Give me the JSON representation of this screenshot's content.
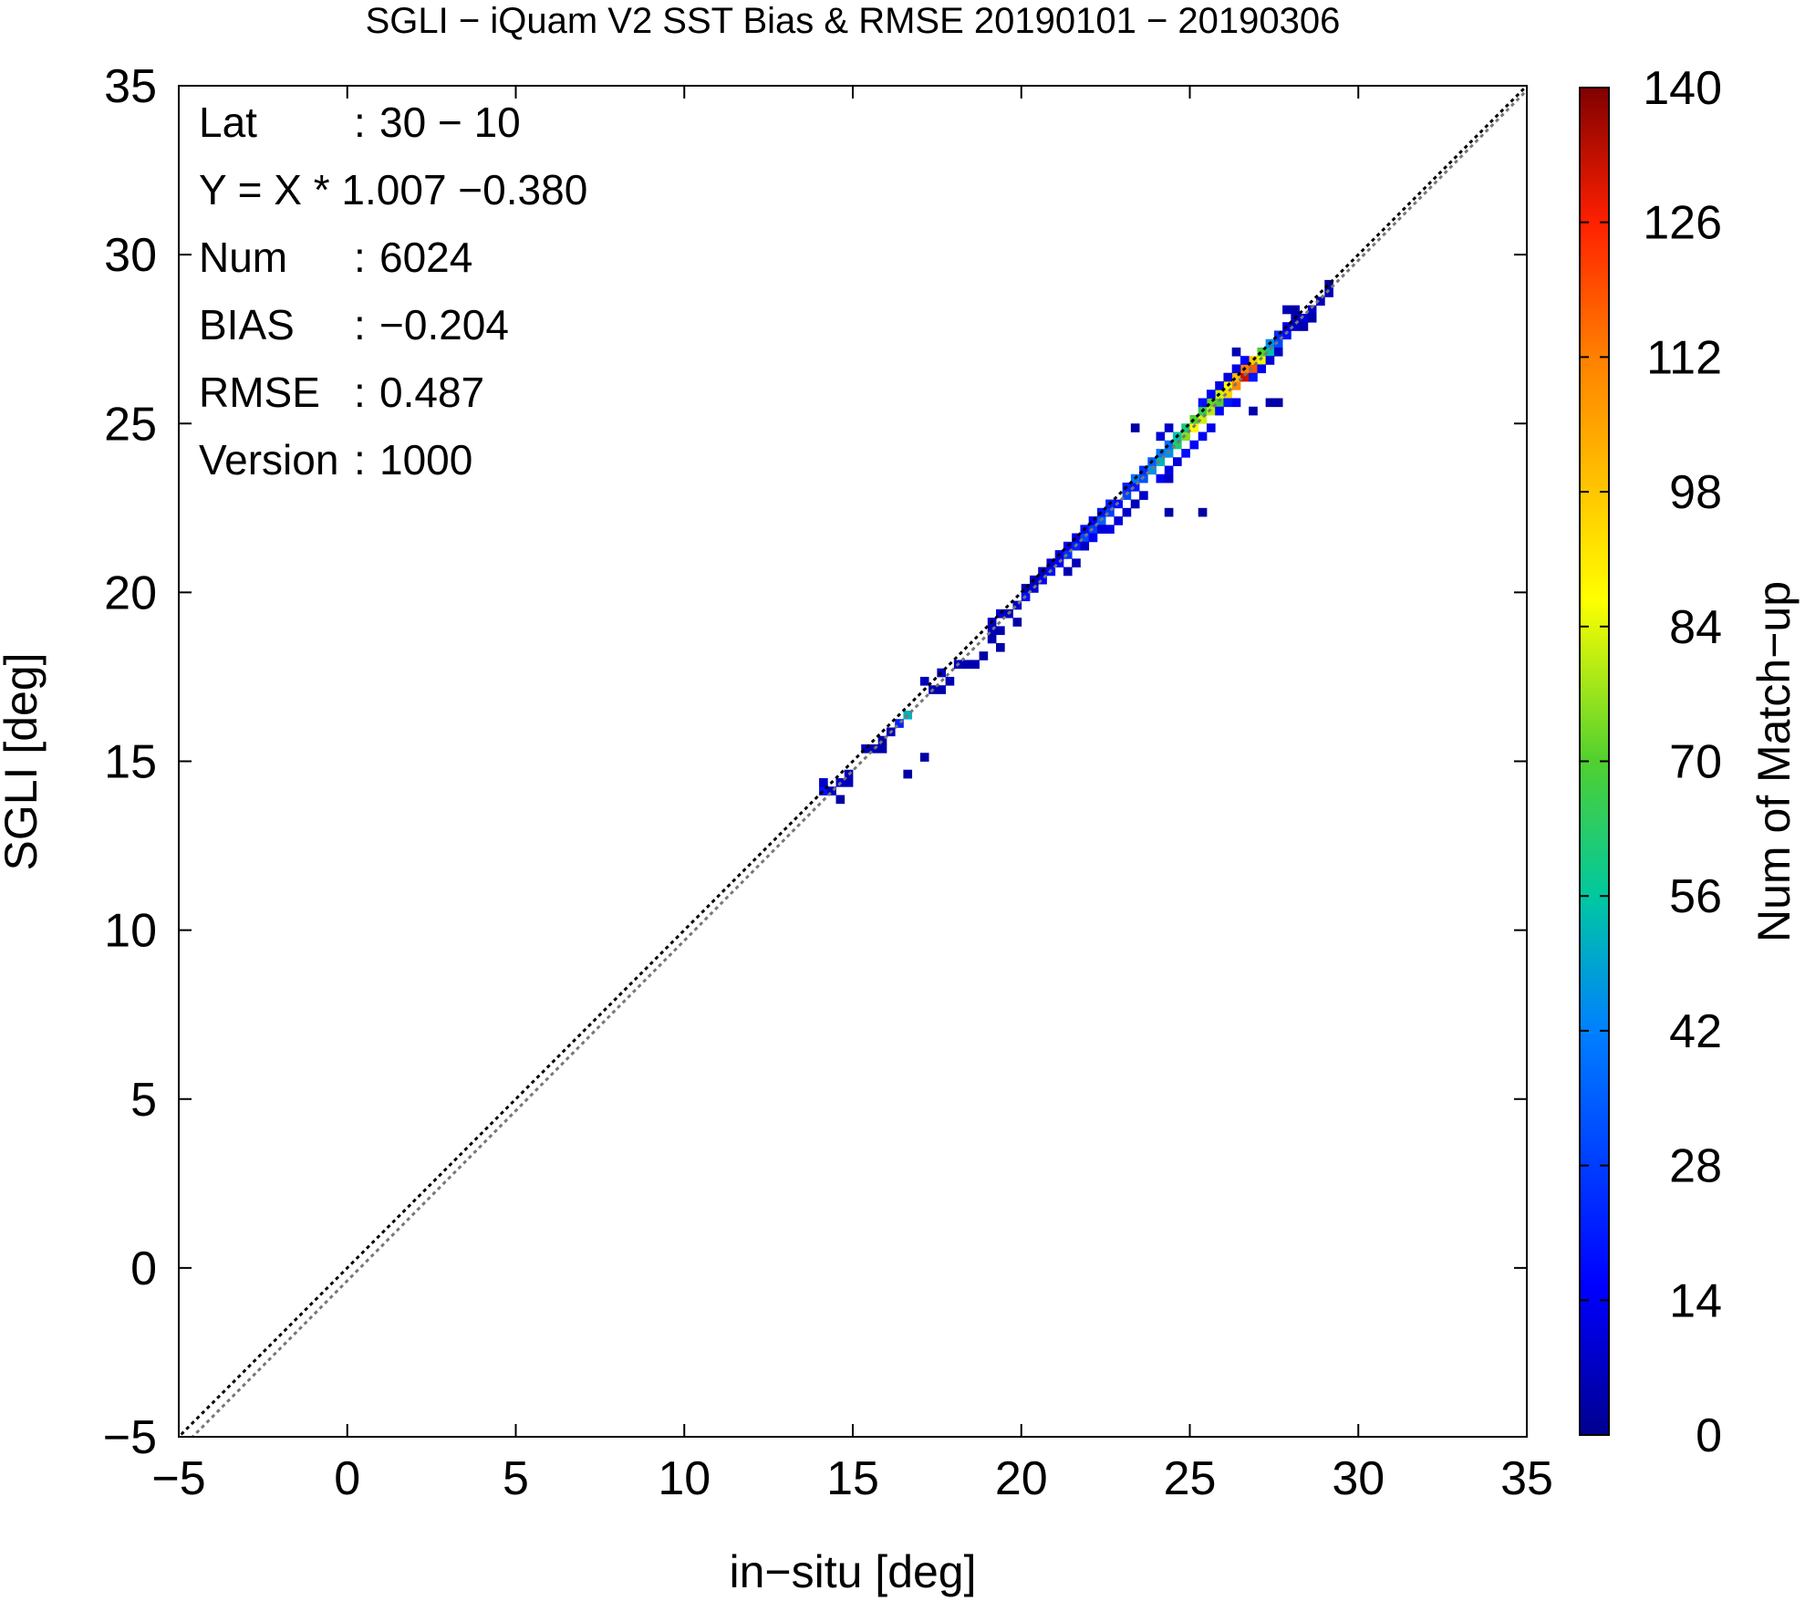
{
  "chart_data": {
    "type": "heatmap",
    "title": "SGLI − iQuam V2 SST Bias & RMSE 20190101 − 20190306",
    "xlabel": "in−situ [deg]",
    "ylabel": "SGLI [deg]",
    "xlim": [
      -5,
      35
    ],
    "ylim": [
      -5,
      35
    ],
    "x_ticks": [
      "−5",
      "0",
      "5",
      "10",
      "15",
      "20",
      "25",
      "30",
      "35"
    ],
    "y_ticks": [
      "−5",
      "0",
      "5",
      "10",
      "15",
      "20",
      "25",
      "30",
      "35"
    ],
    "colorbar": {
      "label": "Num of Match−up",
      "range": [
        0,
        140
      ],
      "ticks": [
        "0",
        "14",
        "28",
        "42",
        "56",
        "70",
        "84",
        "98",
        "112",
        "126",
        "140"
      ]
    },
    "reference_lines": [
      {
        "kind": "y = x",
        "style": "dotted",
        "color": "#000000"
      },
      {
        "kind": "regression",
        "slope": 1.007,
        "intercept": -0.38,
        "style": "dotted",
        "color": "#777777"
      }
    ],
    "stats": [
      {
        "label": "Lat",
        "sep": ":",
        "value": "30 − 10"
      },
      {
        "label": "Y = X * 1.007 −0.380",
        "sep": "",
        "value": ""
      },
      {
        "label": "Num",
        "sep": ":",
        "value": "6024"
      },
      {
        "label": "BIAS",
        "sep": ":",
        "value": "−0.204"
      },
      {
        "label": "RMSE",
        "sep": ":",
        "value": "0.487"
      },
      {
        "label": "Version",
        "sep": ":",
        "value": "1000"
      }
    ],
    "bin_width": 0.25,
    "cells": [
      [
        14.0,
        14.0,
        18
      ],
      [
        14.0,
        14.25,
        8
      ],
      [
        14.25,
        14.0,
        6
      ],
      [
        14.5,
        14.25,
        8
      ],
      [
        14.75,
        14.25,
        6
      ],
      [
        14.75,
        14.5,
        5
      ],
      [
        14.5,
        13.75,
        3
      ],
      [
        15.25,
        15.25,
        6
      ],
      [
        15.5,
        15.25,
        5
      ],
      [
        15.75,
        15.25,
        4
      ],
      [
        15.75,
        15.5,
        3
      ],
      [
        16.0,
        15.75,
        5
      ],
      [
        16.25,
        16.0,
        22
      ],
      [
        16.5,
        16.25,
        52
      ],
      [
        17.0,
        15.0,
        3
      ],
      [
        16.5,
        14.5,
        3
      ],
      [
        17.0,
        17.25,
        6
      ],
      [
        17.25,
        17.0,
        5
      ],
      [
        17.5,
        17.5,
        8
      ],
      [
        17.75,
        17.25,
        5
      ],
      [
        17.5,
        17.0,
        4
      ],
      [
        18.0,
        17.75,
        6
      ],
      [
        18.25,
        17.75,
        4
      ],
      [
        18.5,
        17.75,
        5
      ],
      [
        18.75,
        18.0,
        3
      ],
      [
        19.0,
        18.75,
        6
      ],
      [
        19.0,
        19.0,
        8
      ],
      [
        19.25,
        18.75,
        5
      ],
      [
        19.25,
        19.25,
        10
      ],
      [
        19.0,
        18.5,
        4
      ],
      [
        19.25,
        18.25,
        3
      ],
      [
        19.5,
        19.25,
        6
      ],
      [
        19.75,
        19.5,
        8
      ],
      [
        20.0,
        19.75,
        18
      ],
      [
        19.75,
        19.0,
        3
      ],
      [
        20.0,
        20.0,
        5
      ],
      [
        20.25,
        20.0,
        10
      ],
      [
        20.25,
        20.25,
        6
      ],
      [
        20.5,
        20.25,
        14
      ],
      [
        20.5,
        20.5,
        8
      ],
      [
        20.75,
        20.5,
        18
      ],
      [
        20.75,
        20.75,
        10
      ],
      [
        21.0,
        20.75,
        16
      ],
      [
        21.0,
        21.0,
        12
      ],
      [
        21.25,
        21.0,
        25
      ],
      [
        21.25,
        21.25,
        14
      ],
      [
        21.5,
        21.25,
        22
      ],
      [
        21.5,
        21.5,
        12
      ],
      [
        21.75,
        21.5,
        30
      ],
      [
        21.75,
        21.75,
        18
      ],
      [
        21.75,
        21.25,
        8
      ],
      [
        21.5,
        20.75,
        6
      ],
      [
        21.25,
        20.5,
        5
      ],
      [
        22.0,
        21.75,
        28
      ],
      [
        22.0,
        22.0,
        16
      ],
      [
        22.25,
        22.0,
        35
      ],
      [
        22.25,
        22.25,
        20
      ],
      [
        22.5,
        22.25,
        28
      ],
      [
        22.5,
        22.5,
        22
      ],
      [
        22.75,
        22.5,
        18
      ],
      [
        22.75,
        22.0,
        10
      ],
      [
        23.0,
        22.75,
        30
      ],
      [
        23.0,
        23.0,
        22
      ],
      [
        23.25,
        23.0,
        20
      ],
      [
        22.5,
        21.75,
        12
      ],
      [
        23.0,
        22.25,
        8
      ],
      [
        23.25,
        22.5,
        6
      ],
      [
        22.0,
        21.5,
        14
      ],
      [
        22.25,
        21.75,
        10
      ],
      [
        23.25,
        23.25,
        40
      ],
      [
        23.5,
        23.25,
        32
      ],
      [
        23.5,
        23.5,
        25
      ],
      [
        23.75,
        23.5,
        45
      ],
      [
        23.75,
        23.75,
        35
      ],
      [
        24.0,
        23.75,
        52
      ],
      [
        24.0,
        24.0,
        40
      ],
      [
        24.25,
        24.0,
        45
      ],
      [
        24.25,
        24.25,
        38
      ],
      [
        23.5,
        22.75,
        8
      ],
      [
        24.0,
        23.25,
        14
      ],
      [
        24.25,
        23.5,
        12
      ],
      [
        23.25,
        22.5,
        6
      ],
      [
        24.5,
        23.75,
        10
      ],
      [
        24.5,
        24.25,
        62
      ],
      [
        24.5,
        24.5,
        55
      ],
      [
        24.75,
        24.5,
        75
      ],
      [
        24.75,
        24.75,
        60
      ],
      [
        25.0,
        24.75,
        88
      ],
      [
        25.0,
        25.0,
        70
      ],
      [
        25.25,
        25.0,
        82
      ],
      [
        25.25,
        25.25,
        65
      ],
      [
        24.75,
        24.0,
        18
      ],
      [
        25.0,
        24.25,
        16
      ],
      [
        25.25,
        24.5,
        14
      ],
      [
        24.25,
        23.25,
        8
      ],
      [
        25.5,
        24.75,
        12
      ],
      [
        24.0,
        24.5,
        10
      ],
      [
        24.25,
        24.75,
        8
      ],
      [
        25.5,
        25.25,
        80
      ],
      [
        25.5,
        25.5,
        72
      ],
      [
        25.75,
        25.5,
        70
      ],
      [
        25.75,
        25.75,
        82
      ],
      [
        26.0,
        25.75,
        95
      ],
      [
        26.0,
        26.0,
        88
      ],
      [
        26.25,
        26.0,
        110
      ],
      [
        26.25,
        26.25,
        100
      ],
      [
        26.5,
        26.25,
        132
      ],
      [
        26.5,
        26.5,
        112
      ],
      [
        26.75,
        26.5,
        118
      ],
      [
        26.75,
        26.75,
        98
      ],
      [
        25.75,
        25.25,
        16
      ],
      [
        26.0,
        25.5,
        20
      ],
      [
        26.25,
        25.5,
        14
      ],
      [
        25.25,
        25.5,
        18
      ],
      [
        25.5,
        25.75,
        15
      ],
      [
        25.75,
        26.0,
        12
      ],
      [
        26.0,
        26.25,
        10
      ],
      [
        27.0,
        26.75,
        85
      ],
      [
        27.0,
        27.0,
        70
      ],
      [
        27.25,
        27.0,
        55
      ],
      [
        27.25,
        27.25,
        45
      ],
      [
        27.5,
        27.25,
        30
      ],
      [
        27.5,
        27.5,
        25
      ],
      [
        27.75,
        27.5,
        18
      ],
      [
        27.75,
        27.75,
        12
      ],
      [
        26.75,
        26.25,
        20
      ],
      [
        27.0,
        26.5,
        14
      ],
      [
        26.5,
        26.75,
        16
      ],
      [
        26.25,
        26.5,
        12
      ],
      [
        27.25,
        26.75,
        10
      ],
      [
        27.5,
        27.0,
        8
      ],
      [
        28.0,
        27.75,
        8
      ],
      [
        28.0,
        28.0,
        6
      ],
      [
        28.25,
        28.0,
        10
      ],
      [
        28.5,
        28.25,
        8
      ],
      [
        28.75,
        28.5,
        6
      ],
      [
        29.0,
        28.75,
        5
      ],
      [
        28.0,
        28.25,
        4
      ],
      [
        27.75,
        28.25,
        5
      ],
      [
        28.25,
        27.75,
        4
      ],
      [
        28.5,
        28.0,
        4
      ],
      [
        29.0,
        29.0,
        3
      ],
      [
        24.25,
        22.25,
        4
      ],
      [
        25.25,
        22.25,
        3
      ],
      [
        26.75,
        25.25,
        4
      ],
      [
        27.25,
        25.5,
        4
      ],
      [
        27.5,
        25.5,
        3
      ],
      [
        23.25,
        24.75,
        3
      ],
      [
        26.25,
        27.0,
        5
      ]
    ]
  }
}
